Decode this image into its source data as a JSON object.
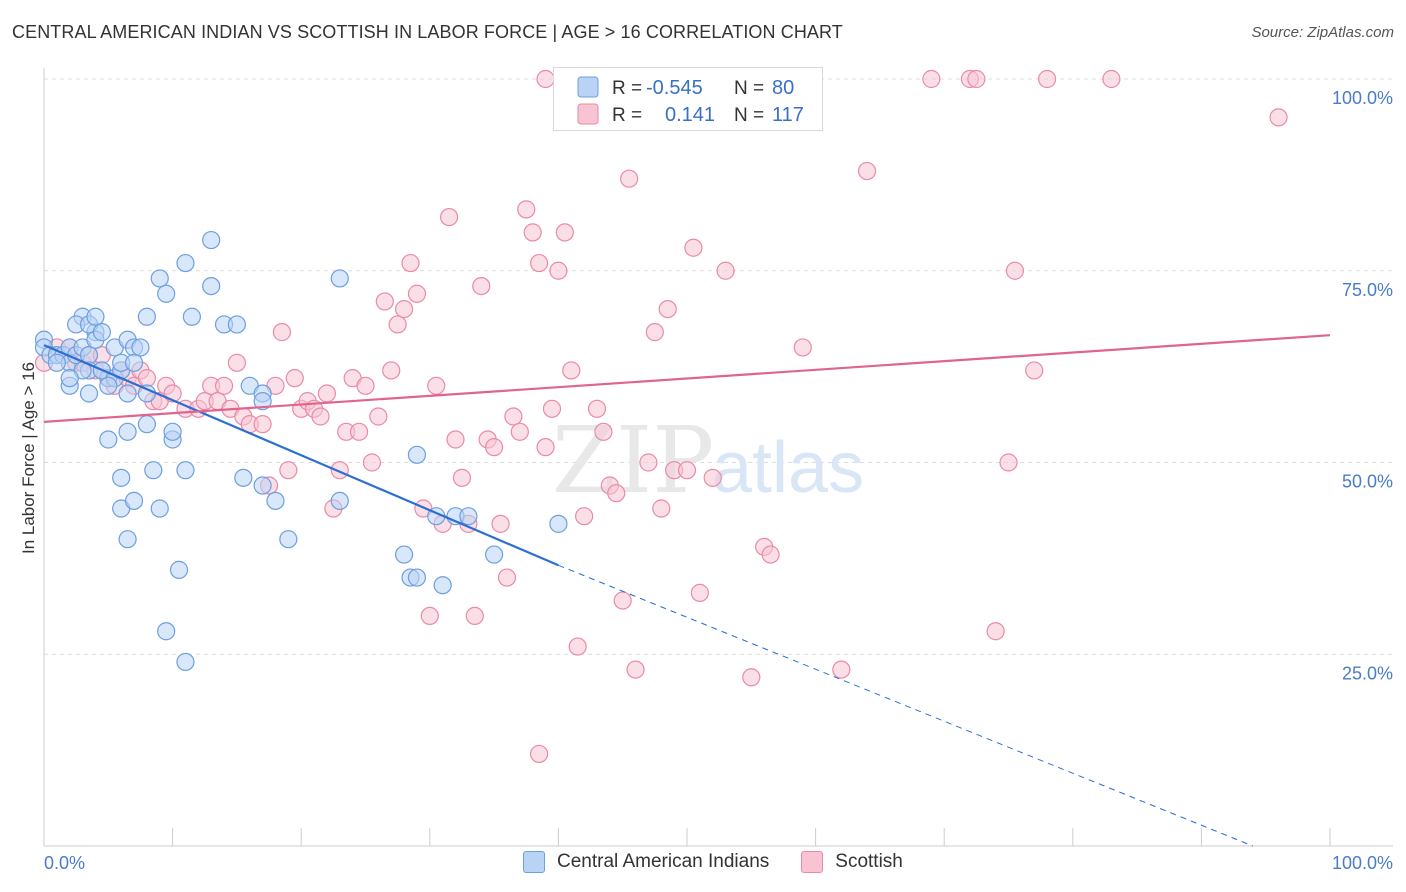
{
  "title": "CENTRAL AMERICAN INDIAN VS SCOTTISH IN LABOR FORCE | AGE > 16 CORRELATION CHART",
  "source": "Source: ZipAtlas.com",
  "watermark": {
    "zip": "ZIP",
    "atlas": "atlas"
  },
  "legend": {
    "r_label": "R =",
    "n_label": "N =",
    "rows": [
      {
        "r": "-0.545",
        "n": "80"
      },
      {
        "r": "0.141",
        "n": "117"
      }
    ]
  },
  "colors": {
    "blue_fill": "#b9d3f5",
    "blue_stroke": "#6d9fe0",
    "blue_line": "#2a6fd1",
    "pink_fill": "#f8c4d4",
    "pink_stroke": "#e98aa8",
    "pink_line": "#e0648e",
    "axis_label": "#4a7cc7",
    "grid": "#dcdcdc"
  },
  "chart_data": {
    "type": "scatter",
    "ylabel": "In Labor Force | Age > 16",
    "xlim": [
      0,
      100
    ],
    "ylim": [
      0,
      100
    ],
    "x_tick_labels": [
      "0.0%",
      "100.0%"
    ],
    "y_ticks": [
      25,
      50,
      75,
      100
    ],
    "y_tick_labels": [
      "25.0%",
      "50.0%",
      "75.0%",
      "100.0%"
    ],
    "grid": "horizontal dashed",
    "series": [
      {
        "name": "Central American Indians",
        "color": "blue",
        "trend": {
          "x0": 0,
          "y0": 65.3,
          "x1": 40,
          "y1": 36.6,
          "dashed_to_x": 94,
          "dashed_to_y": -2.2
        },
        "points": [
          [
            0,
            66
          ],
          [
            0,
            65
          ],
          [
            0.5,
            64
          ],
          [
            1,
            64
          ],
          [
            1.5,
            64
          ],
          [
            2,
            65
          ],
          [
            2,
            63
          ],
          [
            2.5,
            64
          ],
          [
            2,
            60
          ],
          [
            3,
            65
          ],
          [
            3,
            69
          ],
          [
            2.5,
            68
          ],
          [
            3.5,
            64
          ],
          [
            3.5,
            62
          ],
          [
            3.5,
            59
          ],
          [
            4,
            67
          ],
          [
            4,
            66
          ],
          [
            3.5,
            68
          ],
          [
            4,
            69
          ],
          [
            4.5,
            67
          ],
          [
            4.5,
            62
          ],
          [
            5,
            61
          ],
          [
            4.5,
            62
          ],
          [
            5.5,
            61
          ],
          [
            5.5,
            65
          ],
          [
            6,
            62
          ],
          [
            6,
            63
          ],
          [
            6.5,
            59
          ],
          [
            6.5,
            66
          ],
          [
            7,
            65
          ],
          [
            7,
            63
          ],
          [
            7.5,
            65
          ],
          [
            8,
            59
          ],
          [
            8,
            69
          ],
          [
            8,
            55
          ],
          [
            8.5,
            49
          ],
          [
            9,
            74
          ],
          [
            9.5,
            72
          ],
          [
            10,
            53
          ],
          [
            10,
            54
          ],
          [
            11,
            49
          ],
          [
            11,
            76
          ],
          [
            11.5,
            69
          ],
          [
            13,
            79
          ],
          [
            13,
            73
          ],
          [
            14,
            68
          ],
          [
            15,
            68
          ],
          [
            16,
            60
          ],
          [
            17,
            59
          ],
          [
            17,
            58
          ],
          [
            5,
            53
          ],
          [
            6,
            48
          ],
          [
            6,
            44
          ],
          [
            6.5,
            54
          ],
          [
            6.5,
            40
          ],
          [
            7,
            45
          ],
          [
            9,
            44
          ],
          [
            10.5,
            36
          ],
          [
            9.5,
            28
          ],
          [
            11,
            24
          ],
          [
            15.5,
            48
          ],
          [
            17,
            47
          ],
          [
            18,
            45
          ],
          [
            19,
            40
          ],
          [
            23,
            74
          ],
          [
            23,
            45
          ],
          [
            28,
            38
          ],
          [
            28.5,
            35
          ],
          [
            29,
            35
          ],
          [
            29,
            51
          ],
          [
            30.5,
            43
          ],
          [
            31,
            34
          ],
          [
            32,
            43
          ],
          [
            33,
            43
          ],
          [
            35,
            38
          ],
          [
            40,
            42
          ],
          [
            3,
            62
          ],
          [
            2,
            61
          ],
          [
            1,
            63
          ],
          [
            5,
            60
          ]
        ]
      },
      {
        "name": "Scottish",
        "color": "pink",
        "trend": {
          "x0": 0,
          "y0": 55.3,
          "x1": 100,
          "y1": 66.6
        },
        "points": [
          [
            0,
            63
          ],
          [
            1,
            65
          ],
          [
            1.5,
            64
          ],
          [
            2,
            65
          ],
          [
            2.5,
            63
          ],
          [
            3,
            63
          ],
          [
            3.5,
            64
          ],
          [
            4,
            62
          ],
          [
            4.5,
            64
          ],
          [
            5,
            61
          ],
          [
            5.5,
            60
          ],
          [
            6,
            62
          ],
          [
            6.5,
            61
          ],
          [
            7,
            60
          ],
          [
            7.5,
            62
          ],
          [
            8,
            61
          ],
          [
            8.5,
            58
          ],
          [
            9,
            58
          ],
          [
            9.5,
            60
          ],
          [
            10,
            59
          ],
          [
            11,
            57
          ],
          [
            12,
            57
          ],
          [
            12.5,
            58
          ],
          [
            13,
            60
          ],
          [
            13.5,
            58
          ],
          [
            14,
            60
          ],
          [
            14.5,
            57
          ],
          [
            15,
            63
          ],
          [
            15.5,
            56
          ],
          [
            16,
            55
          ],
          [
            17,
            55
          ],
          [
            17.5,
            47
          ],
          [
            18,
            60
          ],
          [
            18.5,
            67
          ],
          [
            19,
            49
          ],
          [
            19.5,
            61
          ],
          [
            20,
            57
          ],
          [
            20.5,
            58
          ],
          [
            21,
            57
          ],
          [
            21.5,
            56
          ],
          [
            22,
            59
          ],
          [
            22.5,
            44
          ],
          [
            23,
            49
          ],
          [
            23.5,
            54
          ],
          [
            24,
            61
          ],
          [
            24.5,
            54
          ],
          [
            25,
            60
          ],
          [
            25.5,
            50
          ],
          [
            26,
            56
          ],
          [
            26.5,
            71
          ],
          [
            27,
            62
          ],
          [
            27.5,
            68
          ],
          [
            28,
            70
          ],
          [
            28.5,
            76
          ],
          [
            29,
            72
          ],
          [
            29.5,
            44
          ],
          [
            30,
            30
          ],
          [
            30.5,
            60
          ],
          [
            31,
            42
          ],
          [
            31.5,
            82
          ],
          [
            32,
            53
          ],
          [
            32.5,
            48
          ],
          [
            33,
            42
          ],
          [
            33.5,
            30
          ],
          [
            34,
            73
          ],
          [
            34.5,
            53
          ],
          [
            35,
            52
          ],
          [
            35.5,
            42
          ],
          [
            36,
            35
          ],
          [
            36.5,
            56
          ],
          [
            37,
            54
          ],
          [
            37.5,
            83
          ],
          [
            38,
            80
          ],
          [
            38.5,
            76
          ],
          [
            39,
            52
          ],
          [
            39.5,
            57
          ],
          [
            40,
            75
          ],
          [
            40.5,
            80
          ],
          [
            41,
            62
          ],
          [
            41.5,
            26
          ],
          [
            42,
            43
          ],
          [
            43,
            57
          ],
          [
            43.5,
            54
          ],
          [
            44,
            47
          ],
          [
            44.5,
            46
          ],
          [
            45,
            32
          ],
          [
            45.5,
            87
          ],
          [
            46,
            23
          ],
          [
            47,
            50
          ],
          [
            47.5,
            67
          ],
          [
            48,
            44
          ],
          [
            48.5,
            70
          ],
          [
            49,
            49
          ],
          [
            50,
            49
          ],
          [
            50.5,
            78
          ],
          [
            51,
            33
          ],
          [
            52,
            48
          ],
          [
            53,
            75
          ],
          [
            55,
            22
          ],
          [
            56,
            39
          ],
          [
            56.5,
            38
          ],
          [
            59,
            65
          ],
          [
            62,
            23
          ],
          [
            64,
            88
          ],
          [
            69,
            100
          ],
          [
            72,
            100
          ],
          [
            72.5,
            100
          ],
          [
            74,
            28
          ],
          [
            75,
            50
          ],
          [
            75.5,
            75
          ],
          [
            77,
            62
          ],
          [
            78,
            100
          ],
          [
            83,
            100
          ],
          [
            96,
            95
          ],
          [
            39,
            100
          ],
          [
            38.5,
            12
          ],
          [
            56,
            100
          ]
        ]
      }
    ]
  }
}
